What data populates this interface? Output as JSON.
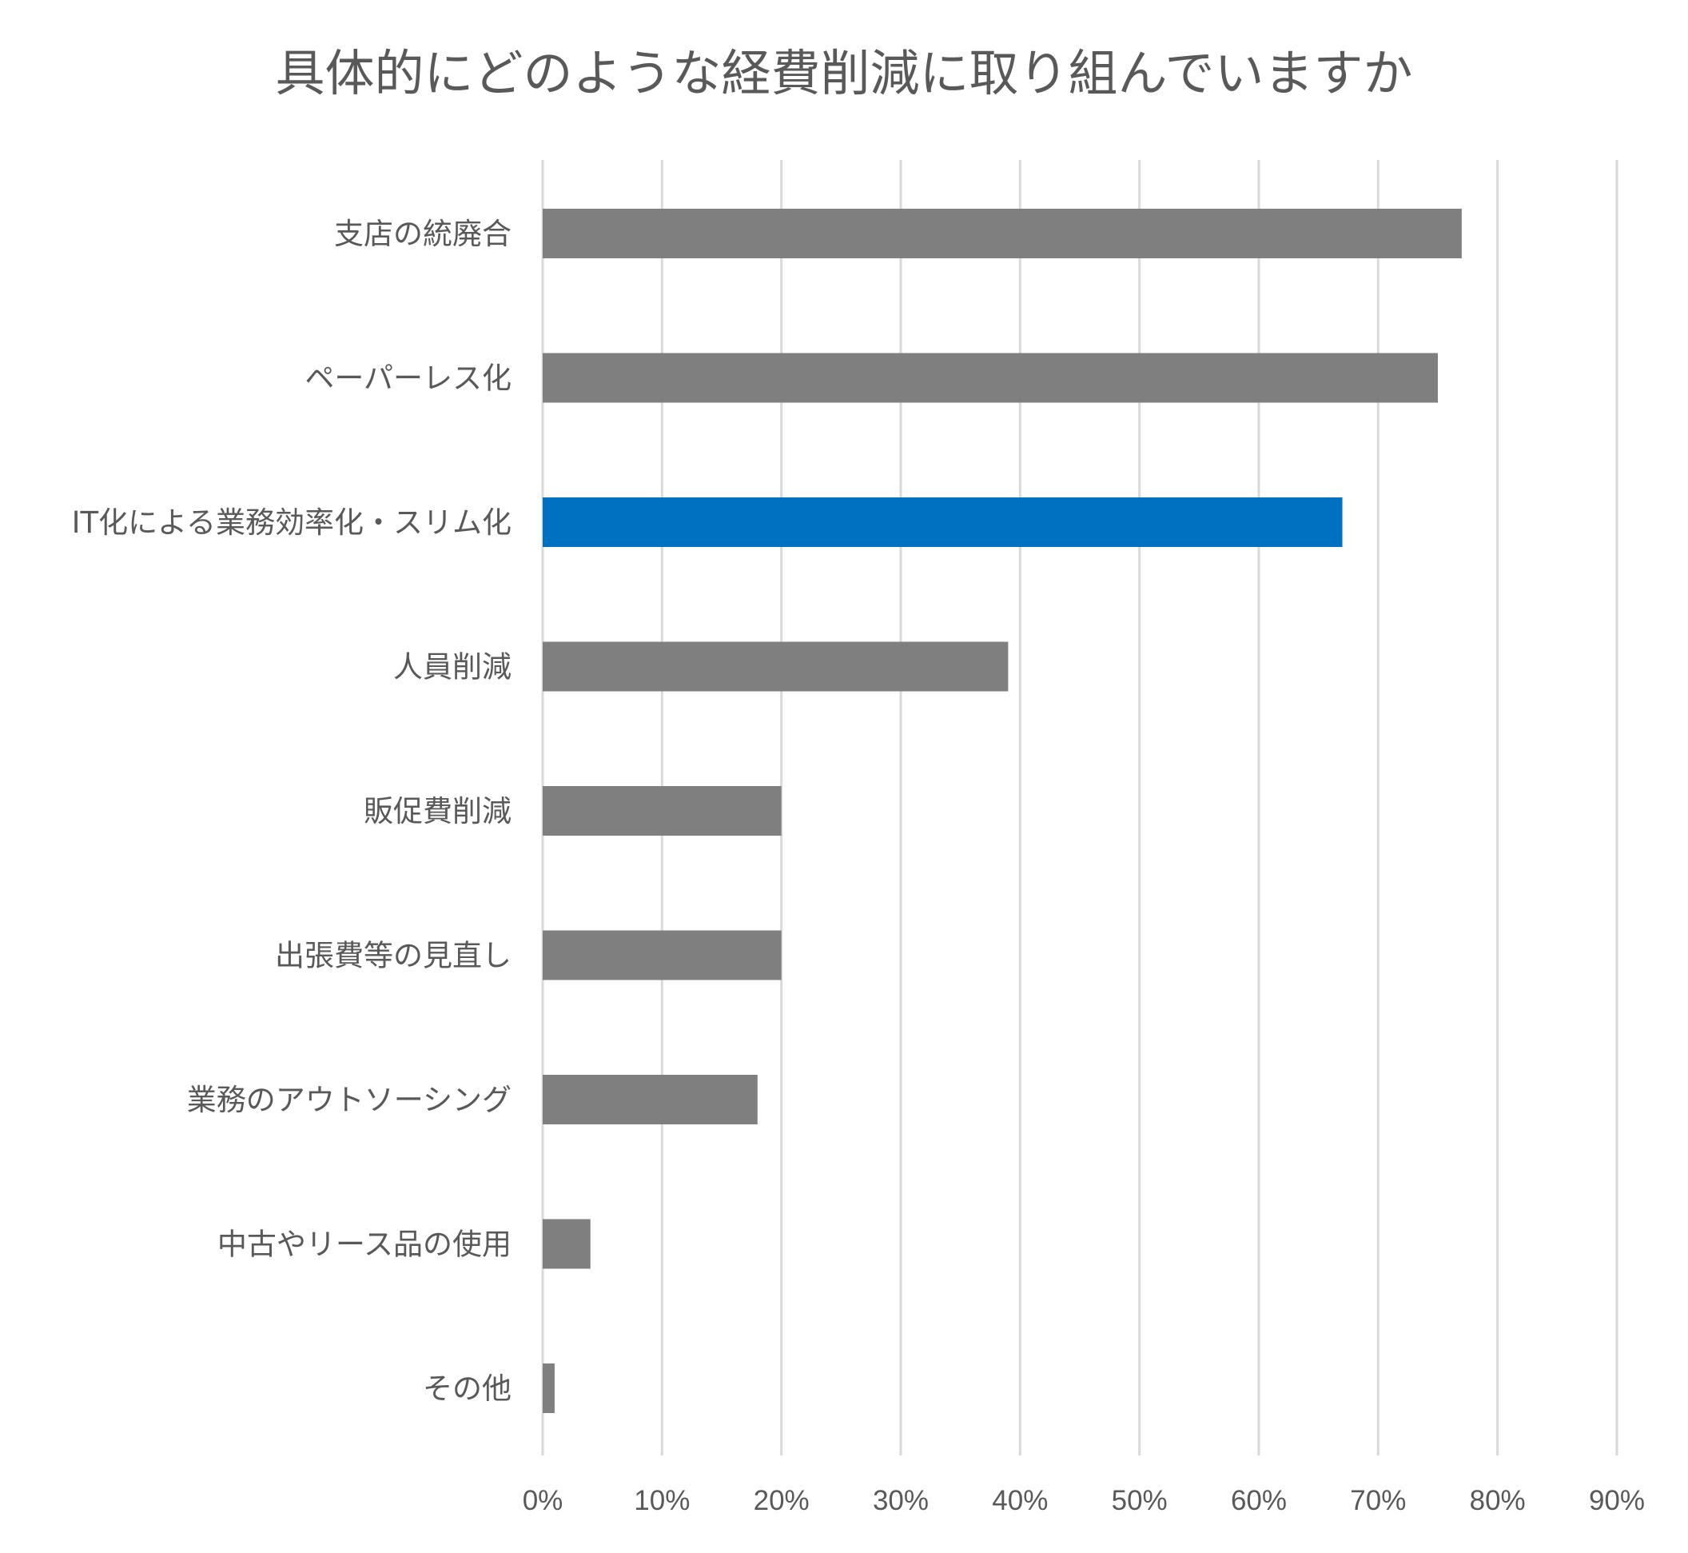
{
  "chart_data": {
    "type": "bar",
    "orientation": "horizontal",
    "title": "具体的にどのような経費削減に取り組んでいますか",
    "xlabel": "",
    "ylabel": "",
    "categories": [
      "支店の統廃合",
      "ペーパーレス化",
      "IT化による業務効率化・スリム化",
      "人員削減",
      "販促費削減",
      "出張費等の見直し",
      "業務のアウトソーシング",
      "中古やリース品の使用",
      "その他"
    ],
    "values": [
      77,
      75,
      67,
      39,
      20,
      20,
      18,
      4,
      1
    ],
    "highlight_index": 2,
    "xlim": [
      0,
      90
    ],
    "ticks": [
      0,
      10,
      20,
      30,
      40,
      50,
      60,
      70,
      80,
      90
    ],
    "tick_labels": [
      "0%",
      "10%",
      "20%",
      "30%",
      "40%",
      "50%",
      "60%",
      "70%",
      "80%",
      "90%"
    ],
    "grid": true,
    "legend": "none",
    "colors": {
      "bar": "#7f7f7f",
      "highlight": "#0070c0",
      "grid": "#d9d9d9",
      "text": "#595959"
    }
  }
}
